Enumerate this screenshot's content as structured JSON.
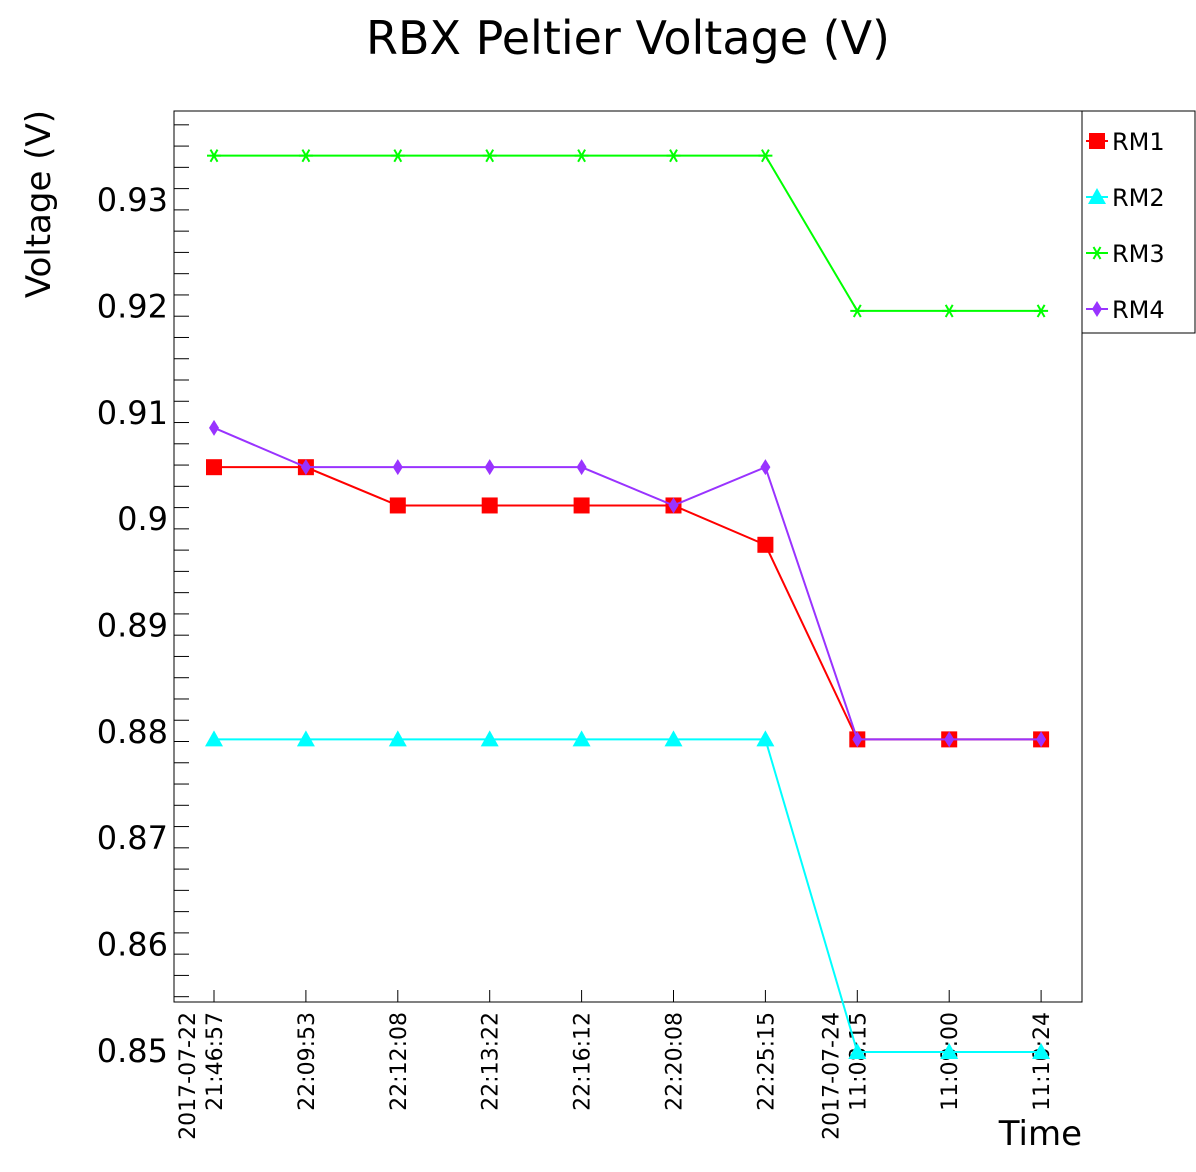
{
  "chart_data": {
    "type": "line",
    "title": "RBX Peltier Voltage (V)",
    "xlabel": "Time",
    "ylabel": "Voltage (V)",
    "x_tick_labels": [
      [
        "2017-07-22",
        "21:46:57"
      ],
      [
        "22:09:53"
      ],
      [
        "22:12:08"
      ],
      [
        "22:13:22"
      ],
      [
        "22:16:12"
      ],
      [
        "22:20:08"
      ],
      [
        "22:25:15"
      ],
      [
        "2017-07-24",
        "11:08:15"
      ],
      [
        "11:09:00"
      ],
      [
        "11:10:24"
      ]
    ],
    "x": [
      "2017-07-22 21:46:57",
      "2017-07-22 22:09:53",
      "2017-07-22 22:12:08",
      "2017-07-22 22:13:22",
      "2017-07-22 22:16:12",
      "2017-07-22 22:20:08",
      "2017-07-22 22:25:15",
      "2017-07-24 11:08:15",
      "2017-07-24 11:09:00",
      "2017-07-24 11:10:24"
    ],
    "ylim": [
      0.8545,
      0.9383
    ],
    "y_ticks": [
      0.85,
      0.86,
      0.87,
      0.88,
      0.89,
      0.9,
      0.91,
      0.92,
      0.93
    ],
    "y_tick_labels": [
      "0.85",
      "0.86",
      "0.87",
      "0.88",
      "0.89",
      "0.9",
      "0.91",
      "0.92",
      "0.93"
    ],
    "grid": false,
    "legend_position": "top-right",
    "series": [
      {
        "name": "RM1",
        "color": "#ff0000",
        "marker": "square",
        "values": [
          0.9048,
          0.9048,
          0.9012,
          0.9012,
          0.9012,
          0.9012,
          0.8975,
          0.8792,
          0.8792,
          0.8792
        ]
      },
      {
        "name": "RM2",
        "color": "#00ffff",
        "marker": "triangle",
        "values": [
          0.8792,
          0.8792,
          0.8792,
          0.8792,
          0.8792,
          0.8792,
          0.8792,
          0.8498,
          0.8498,
          0.8498
        ]
      },
      {
        "name": "RM3",
        "color": "#00ff00",
        "marker": "star",
        "values": [
          0.9341,
          0.9341,
          0.9341,
          0.9341,
          0.9341,
          0.9341,
          0.9341,
          0.9195,
          0.9195,
          0.9195
        ]
      },
      {
        "name": "RM4",
        "color": "#9933ff",
        "marker": "diamond",
        "values": [
          0.9085,
          0.9048,
          0.9048,
          0.9048,
          0.9048,
          0.9012,
          0.9048,
          0.8792,
          0.8792,
          0.8792
        ]
      }
    ]
  }
}
